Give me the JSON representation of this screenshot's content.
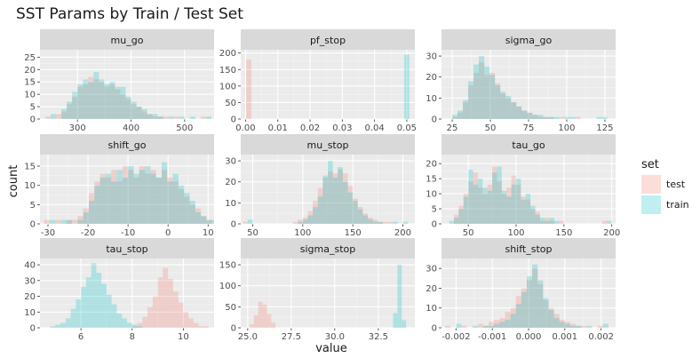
{
  "chart_data": {
    "type": "histogram",
    "title": "SST Params by Train / Test Set",
    "xlabel": "value",
    "ylabel": "count",
    "grid": true,
    "legend": {
      "title": "set",
      "position": "right",
      "entries": [
        "test",
        "train"
      ]
    },
    "colors": {
      "test": "#F8766D",
      "train": "#00BFC4",
      "panel_bg": "#EBEBEB",
      "strip_bg": "#D9D9D9",
      "grid_major": "#FFFFFF",
      "grid_minor": "#F5F5F5"
    },
    "fill_alpha": 0.25,
    "facets": [
      {
        "name": "mu_go",
        "xlim": [
          230,
          555
        ],
        "ylim": [
          0,
          28
        ],
        "xticks": [
          300,
          400,
          500
        ],
        "xtick_labels": [
          "300",
          "400",
          "500"
        ],
        "yticks": [
          0,
          5,
          10,
          15,
          20,
          25
        ],
        "ytick_labels": [
          "0",
          "5",
          "10",
          "15",
          "20",
          "25"
        ],
        "bin_start": 240,
        "bin_width": 10,
        "train": [
          0,
          2,
          0,
          4,
          7,
          11,
          14,
          16,
          15,
          19,
          16,
          14,
          15,
          13,
          13,
          9,
          7,
          5,
          4,
          2,
          2,
          1,
          0,
          1,
          0,
          1,
          0,
          1,
          0,
          0,
          1
        ],
        "test": [
          1,
          0,
          2,
          3,
          6,
          9,
          13,
          14,
          17,
          16,
          15,
          13,
          14,
          12,
          10,
          8,
          6,
          5,
          3,
          2,
          1,
          1,
          1,
          0,
          1,
          0,
          0,
          0,
          0,
          1,
          0
        ]
      },
      {
        "name": "pf_stop",
        "xlim": [
          -0.0015,
          0.0525
        ],
        "ylim": [
          0,
          210
        ],
        "xticks": [
          0,
          0.01,
          0.02,
          0.03,
          0.04,
          0.05
        ],
        "xtick_labels": [
          "0.00",
          "0.01",
          "0.02",
          "0.03",
          "0.04",
          "0.05"
        ],
        "yticks": [
          0,
          50,
          100,
          150,
          200
        ],
        "ytick_labels": [
          "0",
          "50",
          "100",
          "150",
          "200"
        ],
        "bins": [
          {
            "x0": 0.0002,
            "x1": 0.0018,
            "test": 180,
            "train": 0
          },
          {
            "x0": 0.0492,
            "x1": 0.0508,
            "test": 0,
            "train": 195
          }
        ]
      },
      {
        "name": "sigma_go",
        "xlim": [
          18,
          132
        ],
        "ylim": [
          0,
          33
        ],
        "xticks": [
          25,
          50,
          75,
          100,
          125
        ],
        "xtick_labels": [
          "25",
          "50",
          "75",
          "100",
          "125"
        ],
        "yticks": [
          0,
          10,
          20,
          30
        ],
        "ytick_labels": [
          "0",
          "10",
          "20",
          "30"
        ],
        "bin_start": 25,
        "bin_width": 3.5,
        "train": [
          2,
          4,
          9,
          18,
          26,
          30,
          25,
          21,
          16,
          13,
          11,
          8,
          6,
          4,
          3,
          2,
          2,
          1,
          1,
          1,
          0,
          1,
          1,
          0,
          0,
          0,
          0,
          1,
          1
        ],
        "test": [
          1,
          3,
          8,
          16,
          22,
          27,
          21,
          22,
          17,
          12,
          10,
          8,
          6,
          4,
          3,
          2,
          1,
          1,
          1,
          0,
          1,
          0,
          0,
          1,
          0,
          0,
          0,
          0,
          0
        ]
      },
      {
        "name": "shift_go",
        "xlim": [
          -32,
          11.5
        ],
        "ylim": [
          0,
          18
        ],
        "xticks": [
          -30,
          -20,
          -10,
          0,
          10
        ],
        "xtick_labels": [
          "-30",
          "-20",
          "-10",
          "0",
          "10"
        ],
        "yticks": [
          0,
          5,
          10,
          15
        ],
        "ytick_labels": [
          "0",
          "5",
          "10",
          "15"
        ],
        "bin_start": -31,
        "bin_width": 1.4,
        "train": [
          0,
          1,
          0,
          1,
          1,
          0,
          1,
          3,
          6,
          10,
          12,
          13,
          11,
          14,
          12,
          15,
          13,
          14,
          15,
          13,
          12,
          16,
          11,
          13,
          10,
          8,
          6,
          3,
          2,
          1,
          1
        ],
        "test": [
          1,
          0,
          1,
          0,
          1,
          1,
          2,
          4,
          8,
          11,
          13,
          12,
          14,
          11,
          15,
          14,
          12,
          15,
          13,
          14,
          12,
          14,
          12,
          11,
          9,
          7,
          5,
          4,
          2,
          1,
          0
        ]
      },
      {
        "name": "mu_stop",
        "xlim": [
          38,
          212
        ],
        "ylim": [
          0,
          33
        ],
        "xticks": [
          50,
          100,
          150,
          200
        ],
        "xtick_labels": [
          "50",
          "100",
          "150",
          "200"
        ],
        "yticks": [
          0,
          10,
          20,
          30
        ],
        "ytick_labels": [
          "0",
          "10",
          "20",
          "30"
        ],
        "bin_start": 40,
        "bin_width": 5,
        "train": [
          0,
          2,
          0,
          0,
          0,
          0,
          0,
          0,
          0,
          0,
          0,
          1,
          2,
          4,
          8,
          13,
          23,
          30,
          22,
          27,
          20,
          15,
          11,
          7,
          4,
          2,
          1,
          1,
          0,
          0,
          1,
          0,
          1
        ],
        "test": [
          1,
          0,
          0,
          0,
          0,
          0,
          0,
          0,
          0,
          0,
          1,
          2,
          3,
          6,
          11,
          17,
          22,
          25,
          24,
          26,
          24,
          18,
          12,
          8,
          5,
          3,
          2,
          1,
          1,
          1,
          0,
          0,
          0
        ]
      },
      {
        "name": "tau_go",
        "xlim": [
          22,
          204
        ],
        "ylim": [
          0,
          23
        ],
        "xticks": [
          50,
          100,
          150,
          200
        ],
        "xtick_labels": [
          "50",
          "100",
          "150",
          "200"
        ],
        "yticks": [
          0,
          5,
          10,
          15,
          20
        ],
        "ytick_labels": [
          "0",
          "5",
          "10",
          "15",
          "20"
        ],
        "bin_start": 30,
        "bin_width": 5,
        "train": [
          1,
          2,
          5,
          9,
          18,
          13,
          15,
          12,
          11,
          17,
          19,
          11,
          9,
          13,
          15,
          8,
          10,
          6,
          3,
          2,
          1,
          2,
          1,
          0,
          0,
          0,
          0,
          0,
          0,
          0,
          0,
          0,
          0,
          1
        ],
        "test": [
          0,
          3,
          6,
          10,
          14,
          17,
          12,
          10,
          13,
          19,
          14,
          10,
          12,
          16,
          13,
          9,
          8,
          5,
          4,
          1,
          2,
          1,
          0,
          1,
          0,
          0,
          0,
          0,
          0,
          0,
          0,
          0,
          1,
          0
        ]
      },
      {
        "name": "tau_stop",
        "xlim": [
          4.4,
          11.2
        ],
        "ylim": [
          0,
          44
        ],
        "xticks": [
          6,
          8,
          10
        ],
        "xtick_labels": [
          "6",
          "8",
          "10"
        ],
        "yticks": [
          0,
          10,
          20,
          30,
          40
        ],
        "ytick_labels": [
          "0",
          "10",
          "20",
          "30",
          "40"
        ],
        "bin_start": 4.6,
        "bin_width": 0.2,
        "train": [
          0,
          1,
          2,
          3,
          6,
          12,
          18,
          26,
          32,
          41,
          35,
          28,
          21,
          15,
          9,
          6,
          3,
          2,
          1,
          0,
          0,
          0,
          0,
          0,
          0,
          0,
          0,
          0,
          0,
          0,
          0,
          0
        ],
        "test": [
          0,
          0,
          0,
          0,
          0,
          0,
          0,
          0,
          0,
          0,
          0,
          0,
          0,
          0,
          0,
          0,
          0,
          1,
          3,
          7,
          13,
          20,
          32,
          38,
          31,
          23,
          16,
          10,
          6,
          3,
          1,
          1
        ]
      },
      {
        "name": "sigma_stop",
        "xlim": [
          24.6,
          34.6
        ],
        "ylim": [
          0,
          165
        ],
        "xticks": [
          25,
          27.5,
          30,
          32.5
        ],
        "xtick_labels": [
          "25.0",
          "27.5",
          "30.0",
          "32.5"
        ],
        "yticks": [
          0,
          50,
          100,
          150
        ],
        "ytick_labels": [
          "0",
          "50",
          "100",
          "150"
        ],
        "bins": [
          {
            "x0": 25.1,
            "x1": 25.35,
            "test": 8,
            "train": 0
          },
          {
            "x0": 25.35,
            "x1": 25.6,
            "test": 30,
            "train": 0
          },
          {
            "x0": 25.6,
            "x1": 25.85,
            "test": 62,
            "train": 0
          },
          {
            "x0": 25.85,
            "x1": 26.1,
            "test": 55,
            "train": 0
          },
          {
            "x0": 26.1,
            "x1": 26.35,
            "test": 33,
            "train": 0
          },
          {
            "x0": 26.35,
            "x1": 26.6,
            "test": 12,
            "train": 0
          },
          {
            "x0": 33.35,
            "x1": 33.6,
            "test": 0,
            "train": 35
          },
          {
            "x0": 33.6,
            "x1": 33.85,
            "test": 0,
            "train": 150
          },
          {
            "x0": 33.85,
            "x1": 34.1,
            "test": 0,
            "train": 18
          }
        ]
      },
      {
        "name": "shift_stop",
        "xlim": [
          -0.0024,
          0.0024
        ],
        "ylim": [
          0,
          35
        ],
        "xticks": [
          -0.002,
          -0.001,
          0,
          0.001,
          0.002
        ],
        "xtick_labels": [
          "-0.002",
          "-0.001",
          "0.000",
          "0.001",
          "0.002"
        ],
        "yticks": [
          0,
          10,
          20,
          30
        ],
        "ytick_labels": [
          "0",
          "10",
          "20",
          "30"
        ],
        "bin_start": -0.0023,
        "bin_width": 0.00015,
        "train": [
          0,
          0,
          2,
          0,
          0,
          1,
          0,
          1,
          1,
          2,
          3,
          4,
          7,
          12,
          18,
          26,
          32,
          24,
          15,
          9,
          5,
          3,
          2,
          1,
          1,
          0,
          1,
          0,
          0,
          2,
          0
        ],
        "test": [
          1,
          0,
          0,
          1,
          0,
          0,
          2,
          1,
          3,
          4,
          5,
          8,
          10,
          16,
          20,
          24,
          30,
          22,
          14,
          10,
          7,
          4,
          3,
          2,
          1,
          1,
          0,
          0,
          1,
          0,
          0
        ]
      }
    ]
  }
}
